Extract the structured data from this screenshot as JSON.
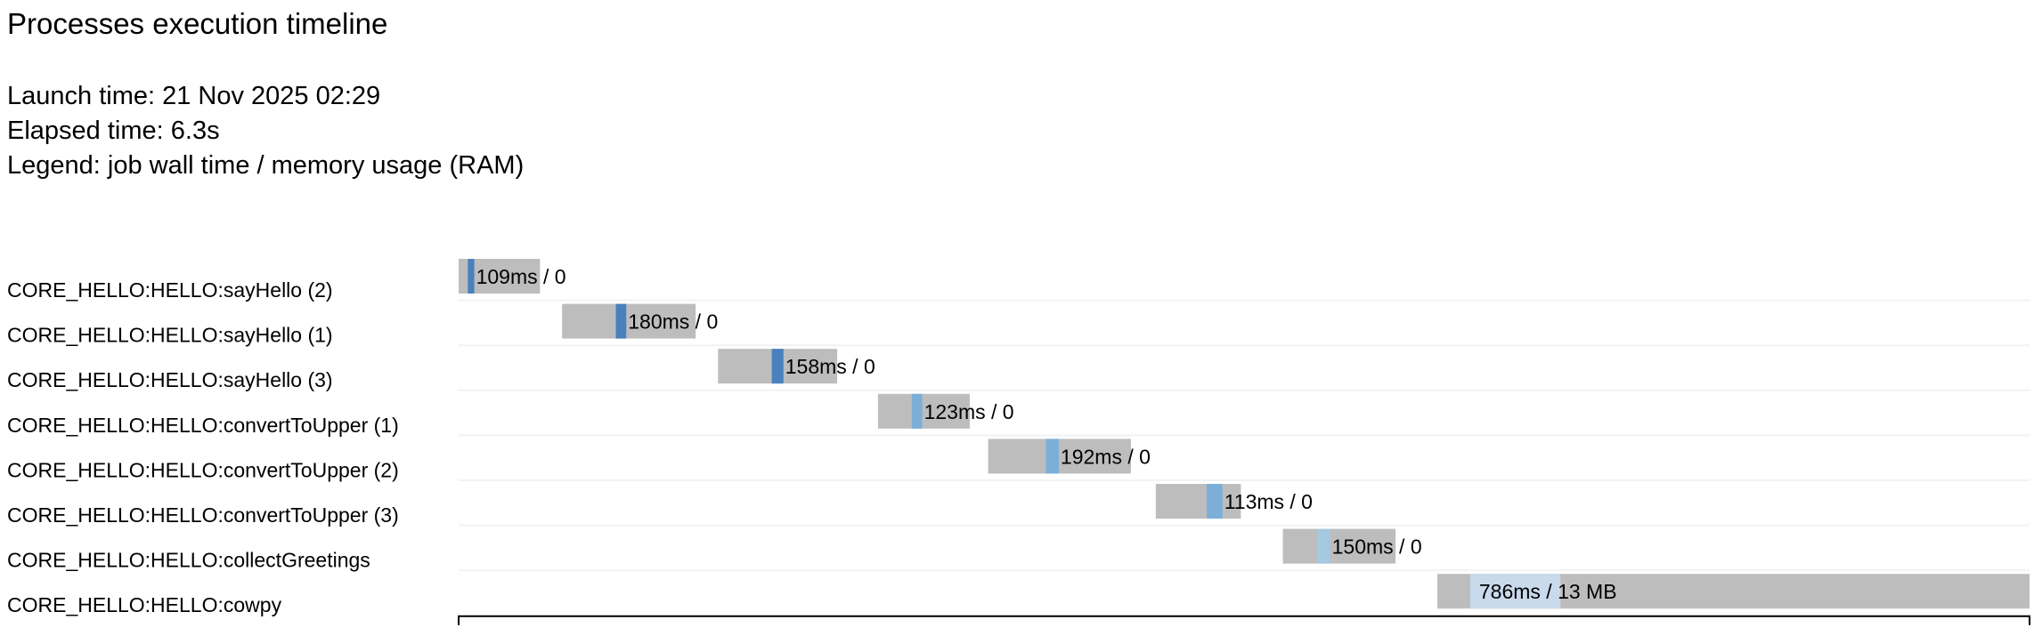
{
  "header": {
    "title": "Processes execution timeline",
    "launch_time": "Launch time: 21 Nov 2025 02:29",
    "elapsed_time": "Elapsed time: 6.3s",
    "legend": "Legend: job wall time / memory usage (RAM)"
  },
  "chart_data": {
    "type": "timeline",
    "x_unit": "ms",
    "xlim": [
      0,
      6316
    ],
    "colors": {
      "pending": "#bdbdbd",
      "row_separator": "#f2f2f2"
    },
    "tasks": [
      {
        "name": "CORE_HELLO:HELLO:sayHello (2)",
        "start": 0,
        "end": 327,
        "run_start": 37,
        "run_end": 63,
        "label": "109ms / 0",
        "color": "#4a81bd"
      },
      {
        "name": "CORE_HELLO:HELLO:sayHello (1)",
        "start": 416,
        "end": 953,
        "run_start": 632,
        "run_end": 674,
        "label": "180ms / 0",
        "color": "#4a81bd"
      },
      {
        "name": "CORE_HELLO:HELLO:sayHello (3)",
        "start": 1043,
        "end": 1522,
        "run_start": 1259,
        "run_end": 1306,
        "label": "158ms / 0",
        "color": "#4a81bd"
      },
      {
        "name": "CORE_HELLO:HELLO:convertToUpper (1)",
        "start": 1686,
        "end": 2055,
        "run_start": 1822,
        "run_end": 1864,
        "label": "123ms / 0",
        "color": "#7bafd8"
      },
      {
        "name": "CORE_HELLO:HELLO:convertToUpper (2)",
        "start": 2129,
        "end": 2703,
        "run_start": 2361,
        "run_end": 2413,
        "label": "192ms / 0",
        "color": "#7bafd8"
      },
      {
        "name": "CORE_HELLO:HELLO:convertToUpper (3)",
        "start": 2803,
        "end": 3145,
        "run_start": 3008,
        "run_end": 3071,
        "label": "113ms / 0",
        "color": "#7bafd8"
      },
      {
        "name": "CORE_HELLO:HELLO:collectGreetings",
        "start": 3314,
        "end": 3767,
        "run_start": 3451,
        "run_end": 3504,
        "label": "150ms / 0",
        "color": "#a6c9e2"
      },
      {
        "name": "CORE_HELLO:HELLO:cowpy",
        "start": 3935,
        "end": 6316,
        "run_start": 4067,
        "run_end": 4430,
        "label": "786ms / 13 MB",
        "color": "#c8daeb"
      }
    ]
  }
}
